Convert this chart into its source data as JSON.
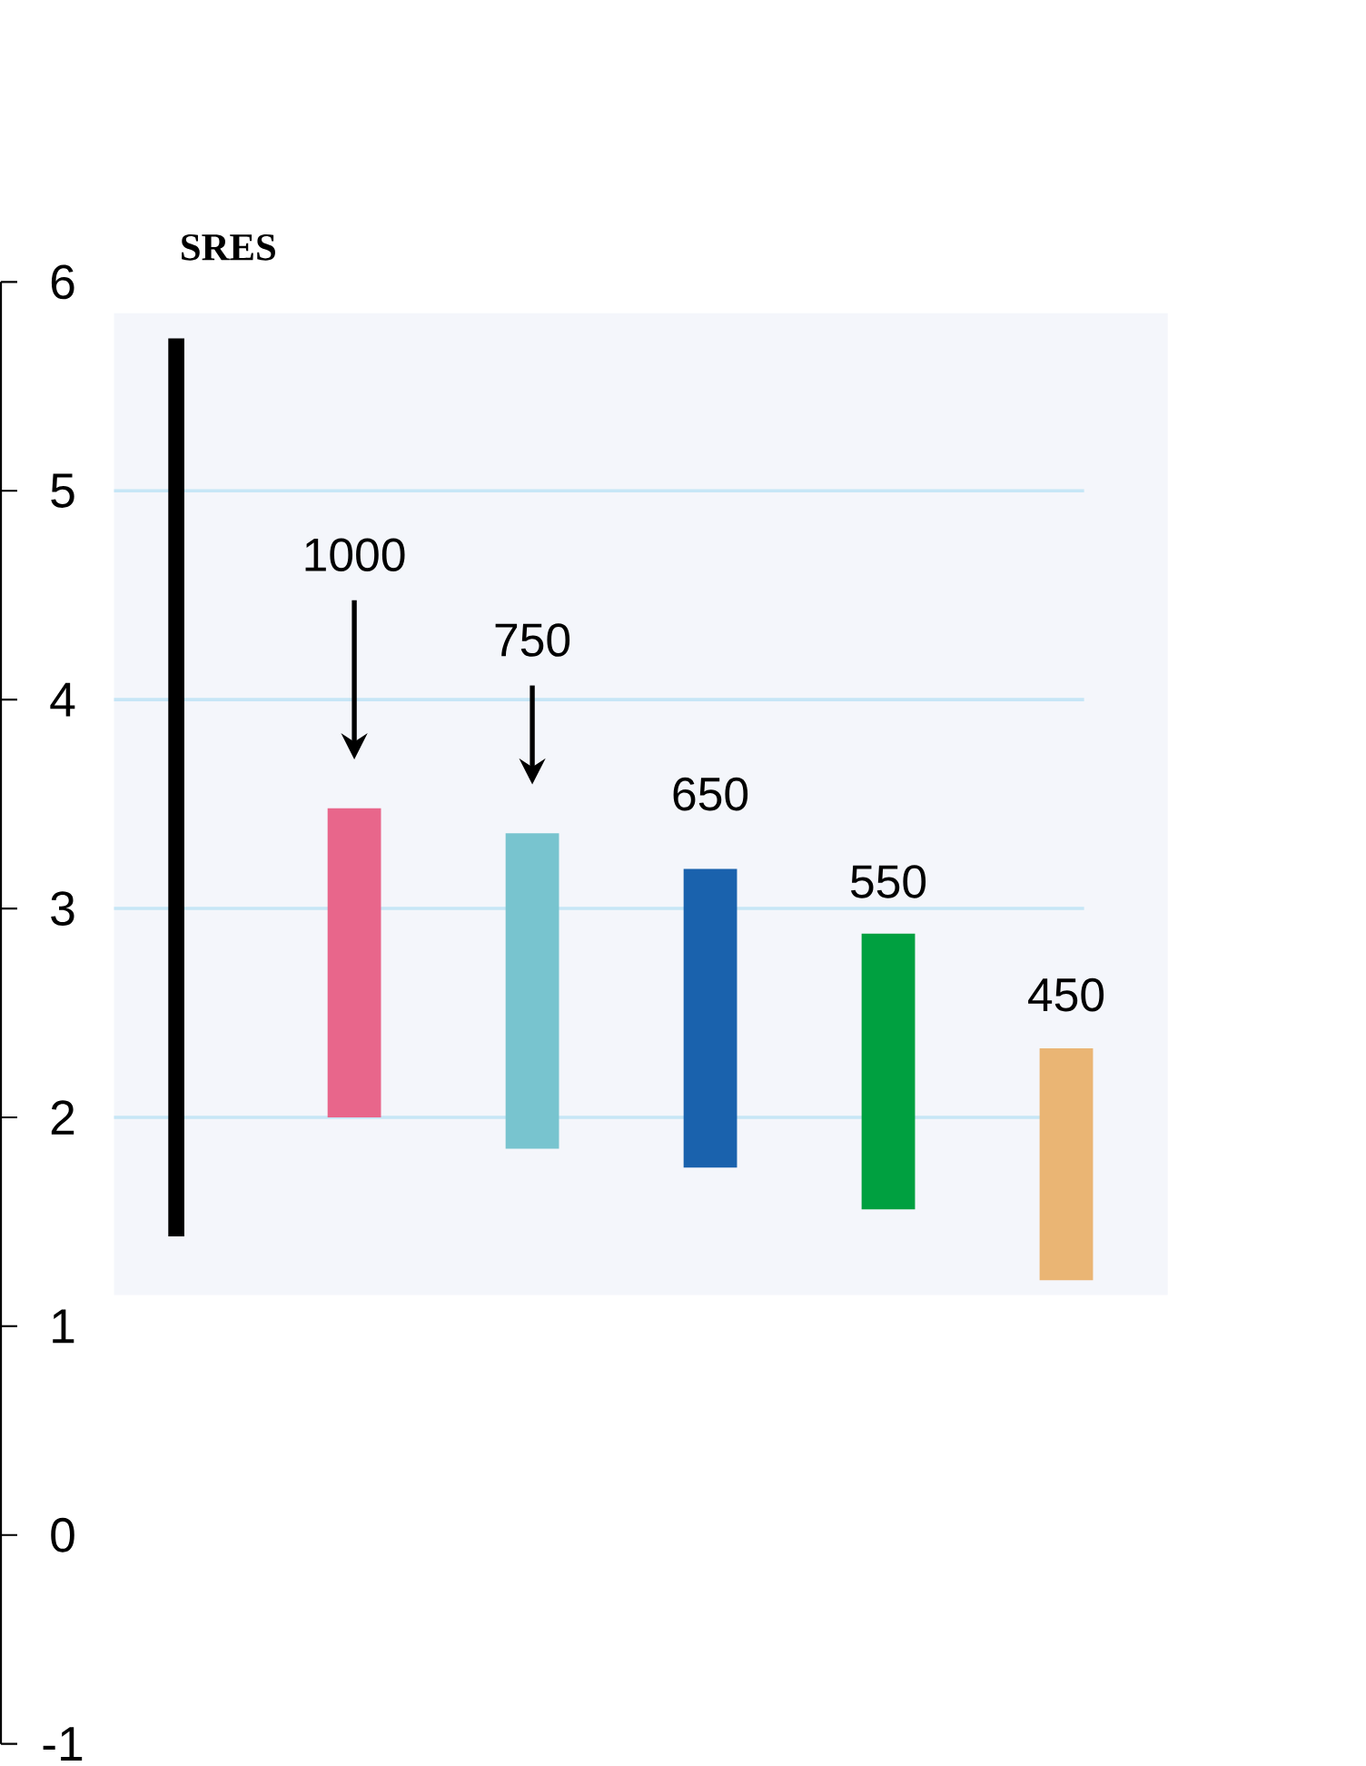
{
  "chart_data": {
    "type": "bar",
    "categories": [
      "SRES",
      "1000",
      "750",
      "650",
      "550",
      "450"
    ],
    "base": [
      1.43,
      2.0,
      1.85,
      1.76,
      1.56,
      1.22
    ],
    "values": [
      4.3,
      1.48,
      1.51,
      1.43,
      1.32,
      1.11
    ],
    "colors": [
      "#000000",
      "#e8668b",
      "#78c4cf",
      "#1a62ad",
      "#00a040",
      "#eab574"
    ],
    "ylim": [
      -1,
      6
    ],
    "yticks": [
      -1,
      0,
      1,
      2,
      3,
      4,
      5,
      6
    ],
    "bands": [
      {
        "axis": "y",
        "from": 1.15,
        "to": 5.85,
        "color": "#f4f6fb"
      }
    ],
    "ref_lines": [
      {
        "axis": "y",
        "value": 2,
        "color": "#c6e6f6"
      },
      {
        "axis": "y",
        "value": 3,
        "color": "#c6e6f6"
      },
      {
        "axis": "y",
        "value": 4,
        "color": "#c6e6f6"
      },
      {
        "axis": "y",
        "value": 5,
        "color": "#c6e6f6"
      }
    ]
  }
}
